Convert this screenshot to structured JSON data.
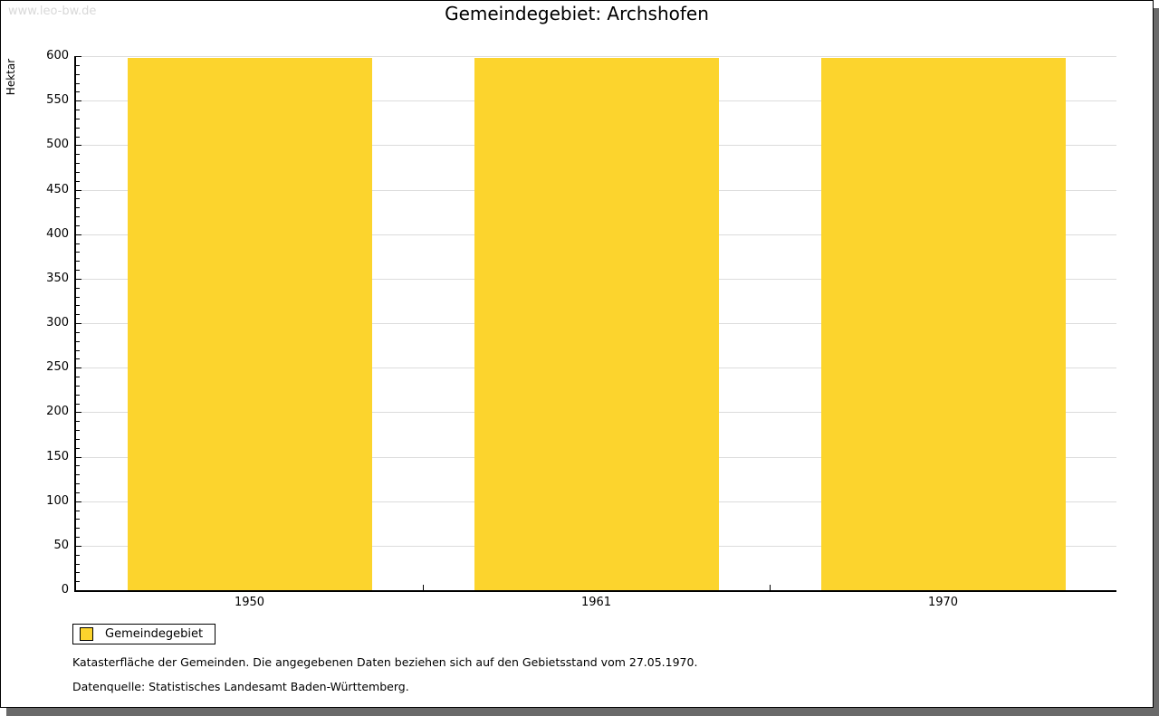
{
  "window": {
    "watermark": "www.leo-bw.de"
  },
  "chart_data": {
    "type": "bar",
    "title": "Gemeindegebiet: Archshofen",
    "categories": [
      "1950",
      "1961",
      "1970"
    ],
    "series": [
      {
        "name": "Gemeindegebiet",
        "values": [
          598,
          598,
          598
        ]
      }
    ],
    "xlabel": "",
    "ylabel": "Hektar",
    "ylim": [
      0,
      600
    ],
    "y_major_step": 50,
    "y_minor_step": 10,
    "grid": true,
    "legend_position": "bottom-left",
    "colors": {
      "bar": "#FCD42D",
      "gridline": "#DCDCDC",
      "axis": "#000000",
      "watermark": "#D8D8D8",
      "shadow": "#6A6A6A"
    }
  },
  "legend": {
    "label": "Gemeindegebiet"
  },
  "footnotes": {
    "line1": "Katasterfläche der Gemeinden. Die angegebenen Daten beziehen sich auf den Gebietsstand vom 27.05.1970.",
    "line2": "Datenquelle: Statistisches Landesamt Baden-Württemberg."
  }
}
